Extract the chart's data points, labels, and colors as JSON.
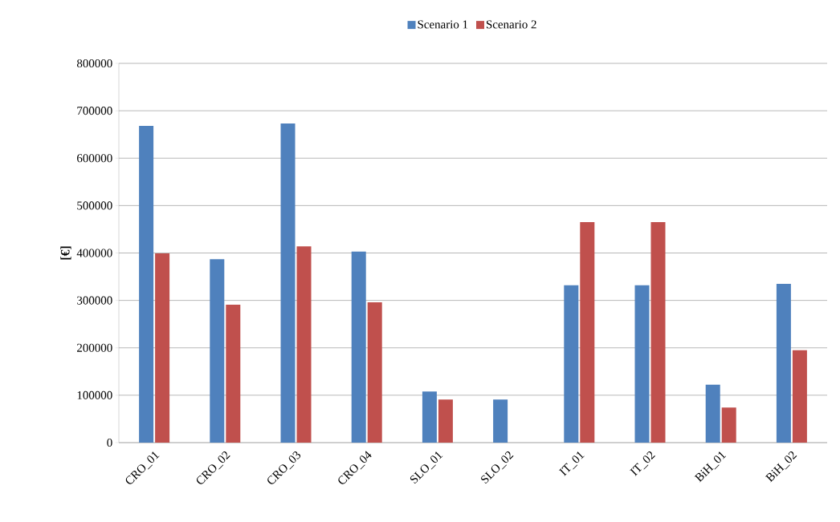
{
  "chart_data": {
    "type": "bar",
    "ylabel": "[€]",
    "categories": [
      "CRO_01",
      "CRO_02",
      "CRO_03",
      "CRO_04",
      "SLO_01",
      "SLO_02",
      "IT_01",
      "IT_02",
      "BiH_01",
      "BiH_02"
    ],
    "series": [
      {
        "name": "Scenario 1",
        "color": "#4f81bd",
        "values": [
          668000,
          387000,
          673000,
          403000,
          108000,
          91000,
          332000,
          332000,
          122000,
          335000
        ]
      },
      {
        "name": "Scenario 2",
        "color": "#c0504d",
        "values": [
          399000,
          291000,
          414000,
          296000,
          91000,
          null,
          465000,
          465000,
          74000,
          195000
        ]
      }
    ],
    "ylim": [
      0,
      800000
    ],
    "yticks": [
      0,
      100000,
      200000,
      300000,
      400000,
      500000,
      600000,
      700000,
      800000
    ],
    "grid": "y",
    "legend": "top"
  }
}
